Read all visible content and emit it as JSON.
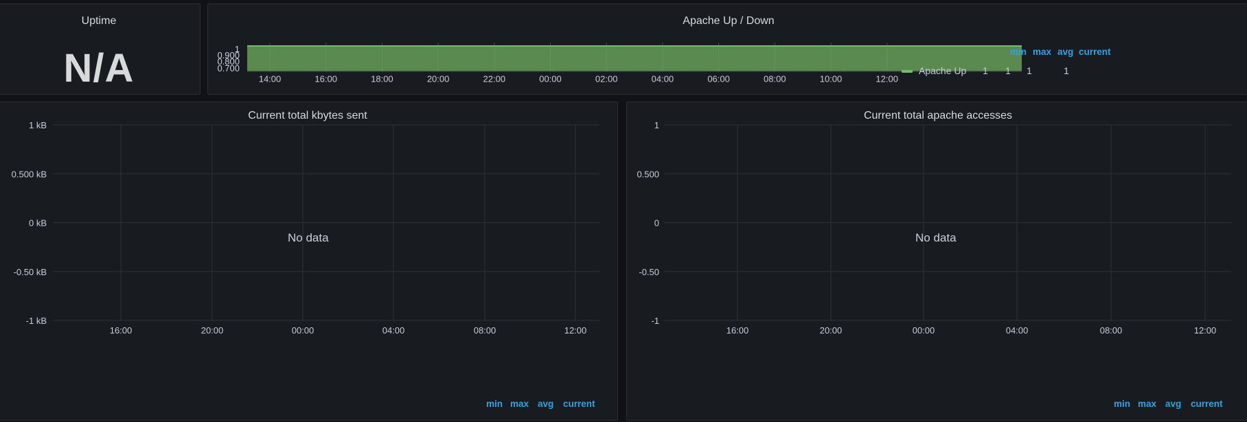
{
  "uptime": {
    "title": "Uptime",
    "value": "N/A"
  },
  "apache_updown": {
    "title": "Apache Up / Down",
    "legend_headers": [
      "min",
      "max",
      "avg",
      "current"
    ],
    "legend_series": {
      "name": "Apache Up",
      "min": "1",
      "max": "1",
      "avg": "1",
      "current": "1"
    },
    "color": "#73bf69",
    "y_ticks": [
      "1",
      "0.900",
      "0.800",
      "0.700"
    ],
    "x_ticks": [
      "14:00",
      "16:00",
      "18:00",
      "20:00",
      "22:00",
      "00:00",
      "02:00",
      "04:00",
      "06:00",
      "08:00",
      "10:00",
      "12:00"
    ]
  },
  "kbytes_sent": {
    "title": "Current total kbytes sent",
    "no_data": "No data",
    "y_ticks": [
      "1 kB",
      "0.500 kB",
      "0 kB",
      "-0.50 kB",
      "-1 kB"
    ],
    "x_ticks": [
      "16:00",
      "20:00",
      "00:00",
      "04:00",
      "08:00",
      "12:00"
    ],
    "legend_headers": [
      "min",
      "max",
      "avg",
      "current"
    ]
  },
  "apache_accesses": {
    "title": "Current total apache accesses",
    "no_data": "No data",
    "y_ticks": [
      "1",
      "0.500",
      "0",
      "-0.50",
      "-1"
    ],
    "x_ticks": [
      "16:00",
      "20:00",
      "00:00",
      "04:00",
      "08:00",
      "12:00"
    ],
    "legend_headers": [
      "min",
      "max",
      "avg",
      "current"
    ]
  },
  "colors": {
    "background": "#111217",
    "panel": "#181b1f",
    "grid": "#2f3136",
    "legend_header": "#33a2e5",
    "series": "#73bf69"
  }
}
